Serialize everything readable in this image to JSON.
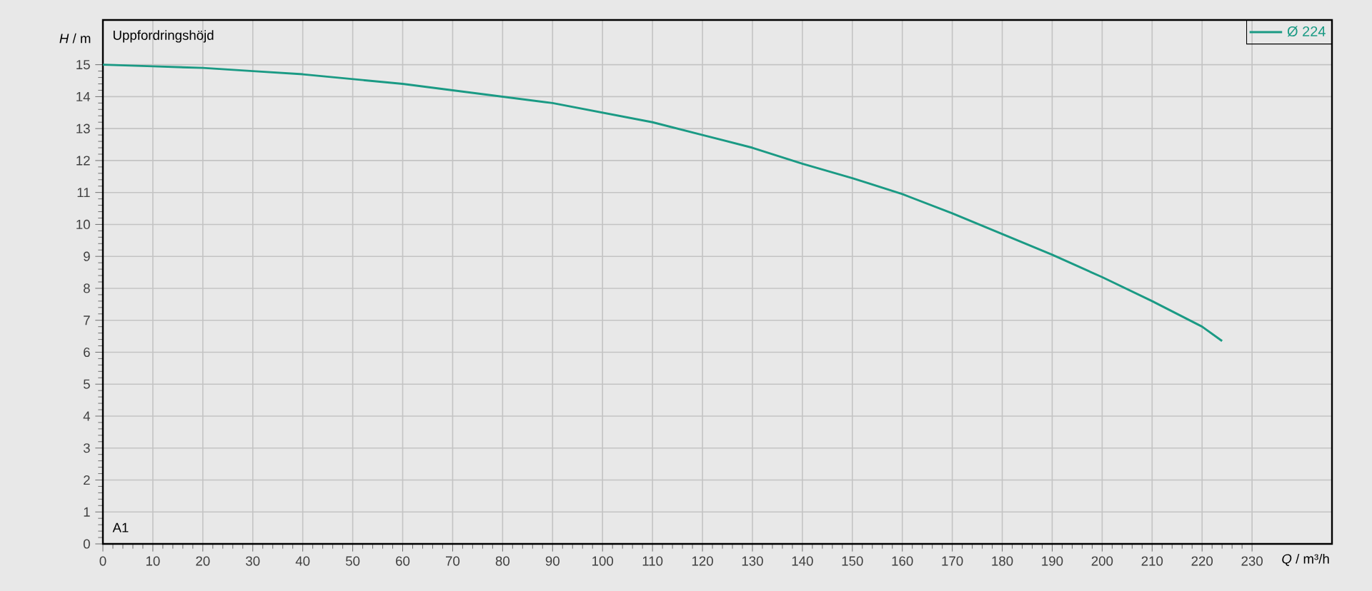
{
  "chart_data": {
    "type": "line",
    "xlabel": "*Q* / m³/h",
    "ylabel": "*H* / m",
    "annotations": [
      "Uppfordringshöjd",
      "A1"
    ],
    "x": [
      0,
      10,
      20,
      30,
      40,
      50,
      60,
      70,
      80,
      90,
      100,
      110,
      120,
      130,
      140,
      150,
      160,
      170,
      180,
      190,
      200,
      210,
      220,
      224
    ],
    "series": [
      {
        "name": "Ø 224",
        "color": "#1a9a84",
        "values": [
          15.0,
          14.95,
          14.9,
          14.8,
          14.7,
          14.55,
          14.4,
          14.2,
          14.0,
          13.8,
          13.5,
          13.2,
          12.8,
          12.4,
          11.9,
          11.45,
          10.95,
          10.35,
          9.7,
          9.05,
          8.35,
          7.6,
          6.8,
          6.35
        ]
      }
    ],
    "xlim": [
      0,
      246
    ],
    "ylim": [
      0,
      16.4
    ],
    "xticks": [
      0,
      10,
      20,
      30,
      40,
      50,
      60,
      70,
      80,
      90,
      100,
      110,
      120,
      130,
      140,
      150,
      160,
      170,
      180,
      190,
      200,
      210,
      220,
      230
    ],
    "yticks": [
      0,
      1,
      2,
      3,
      4,
      5,
      6,
      7,
      8,
      9,
      10,
      11,
      12,
      13,
      14,
      15
    ],
    "grid": true,
    "legend": "top right",
    "marker": "none",
    "line_style": "solid"
  }
}
